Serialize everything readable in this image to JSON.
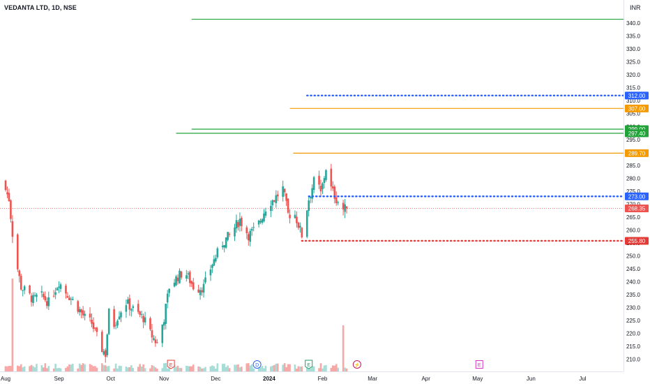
{
  "header": {
    "title": "VEDANTA LTD, 1D, NSE",
    "currency": "INR"
  },
  "chart_data": {
    "type": "candlestick",
    "title": "VEDANTA LTD, 1D, NSE",
    "currency": "INR",
    "ylim": [
      208,
      343
    ],
    "y_ticks": [
      210,
      215,
      220,
      225,
      230,
      235,
      240,
      245,
      250,
      255,
      260,
      265,
      270,
      275,
      280,
      285,
      290,
      295,
      300,
      305,
      310,
      315,
      320,
      325,
      330,
      335,
      340
    ],
    "x_ticks": [
      {
        "label": "Aug",
        "day": 0
      },
      {
        "label": "Sep",
        "day": 31
      },
      {
        "label": "Oct",
        "day": 61
      },
      {
        "label": "Nov",
        "day": 92
      },
      {
        "label": "Dec",
        "day": 122
      },
      {
        "label": "2024",
        "day": 153,
        "bold": true
      },
      {
        "label": "Feb",
        "day": 184
      },
      {
        "label": "Mar",
        "day": 213
      },
      {
        "label": "Apr",
        "day": 244
      },
      {
        "label": "May",
        "day": 274
      },
      {
        "label": "Jun",
        "day": 305
      },
      {
        "label": "Jul",
        "day": 335
      }
    ],
    "last_price": 268.35,
    "price_levels": [
      {
        "value": 341.5,
        "style": "solid",
        "color": "#22a33a",
        "start_day": 108,
        "label": ""
      },
      {
        "value": 312.0,
        "style": "dotted",
        "color": "#2962ff",
        "start_day": 175,
        "label": "312.00"
      },
      {
        "value": 307.0,
        "style": "solid",
        "color": "#f59a00",
        "start_day": 165,
        "label": "307.00"
      },
      {
        "value": 299.0,
        "style": "solid",
        "color": "#22a33a",
        "start_day": 108,
        "label": "299.00"
      },
      {
        "value": 297.4,
        "style": "solid",
        "color": "#22a33a",
        "start_day": 99,
        "label": "297.40"
      },
      {
        "value": 289.7,
        "style": "solid",
        "color": "#f59a00",
        "start_day": 167,
        "label": "289.70"
      },
      {
        "value": 273.0,
        "style": "dotted",
        "color": "#2962ff",
        "start_day": 176,
        "label": "273.00"
      },
      {
        "value": 255.8,
        "style": "dotted",
        "color": "#e53935",
        "start_day": 172,
        "label": "255.80"
      }
    ],
    "last_price_label": "268.35",
    "events": [
      {
        "day": 96,
        "symbol": "E",
        "color": "#e53935",
        "shape": "tag"
      },
      {
        "day": 146,
        "symbol": "D",
        "color": "#2962ff",
        "shape": "circle"
      },
      {
        "day": 176,
        "symbol": "E",
        "color": "#1f9d6a",
        "shape": "tag"
      },
      {
        "day": 204,
        "symbol": "⚡",
        "color": "#c2185b",
        "shape": "circle"
      },
      {
        "day": 275,
        "symbol": "E",
        "color": "#d633c4",
        "shape": "square"
      }
    ],
    "colors": {
      "up": "#26a69a",
      "down": "#ef5350",
      "vol_up": "#a8dcd6",
      "vol_down": "#f7a8a6"
    }
  }
}
